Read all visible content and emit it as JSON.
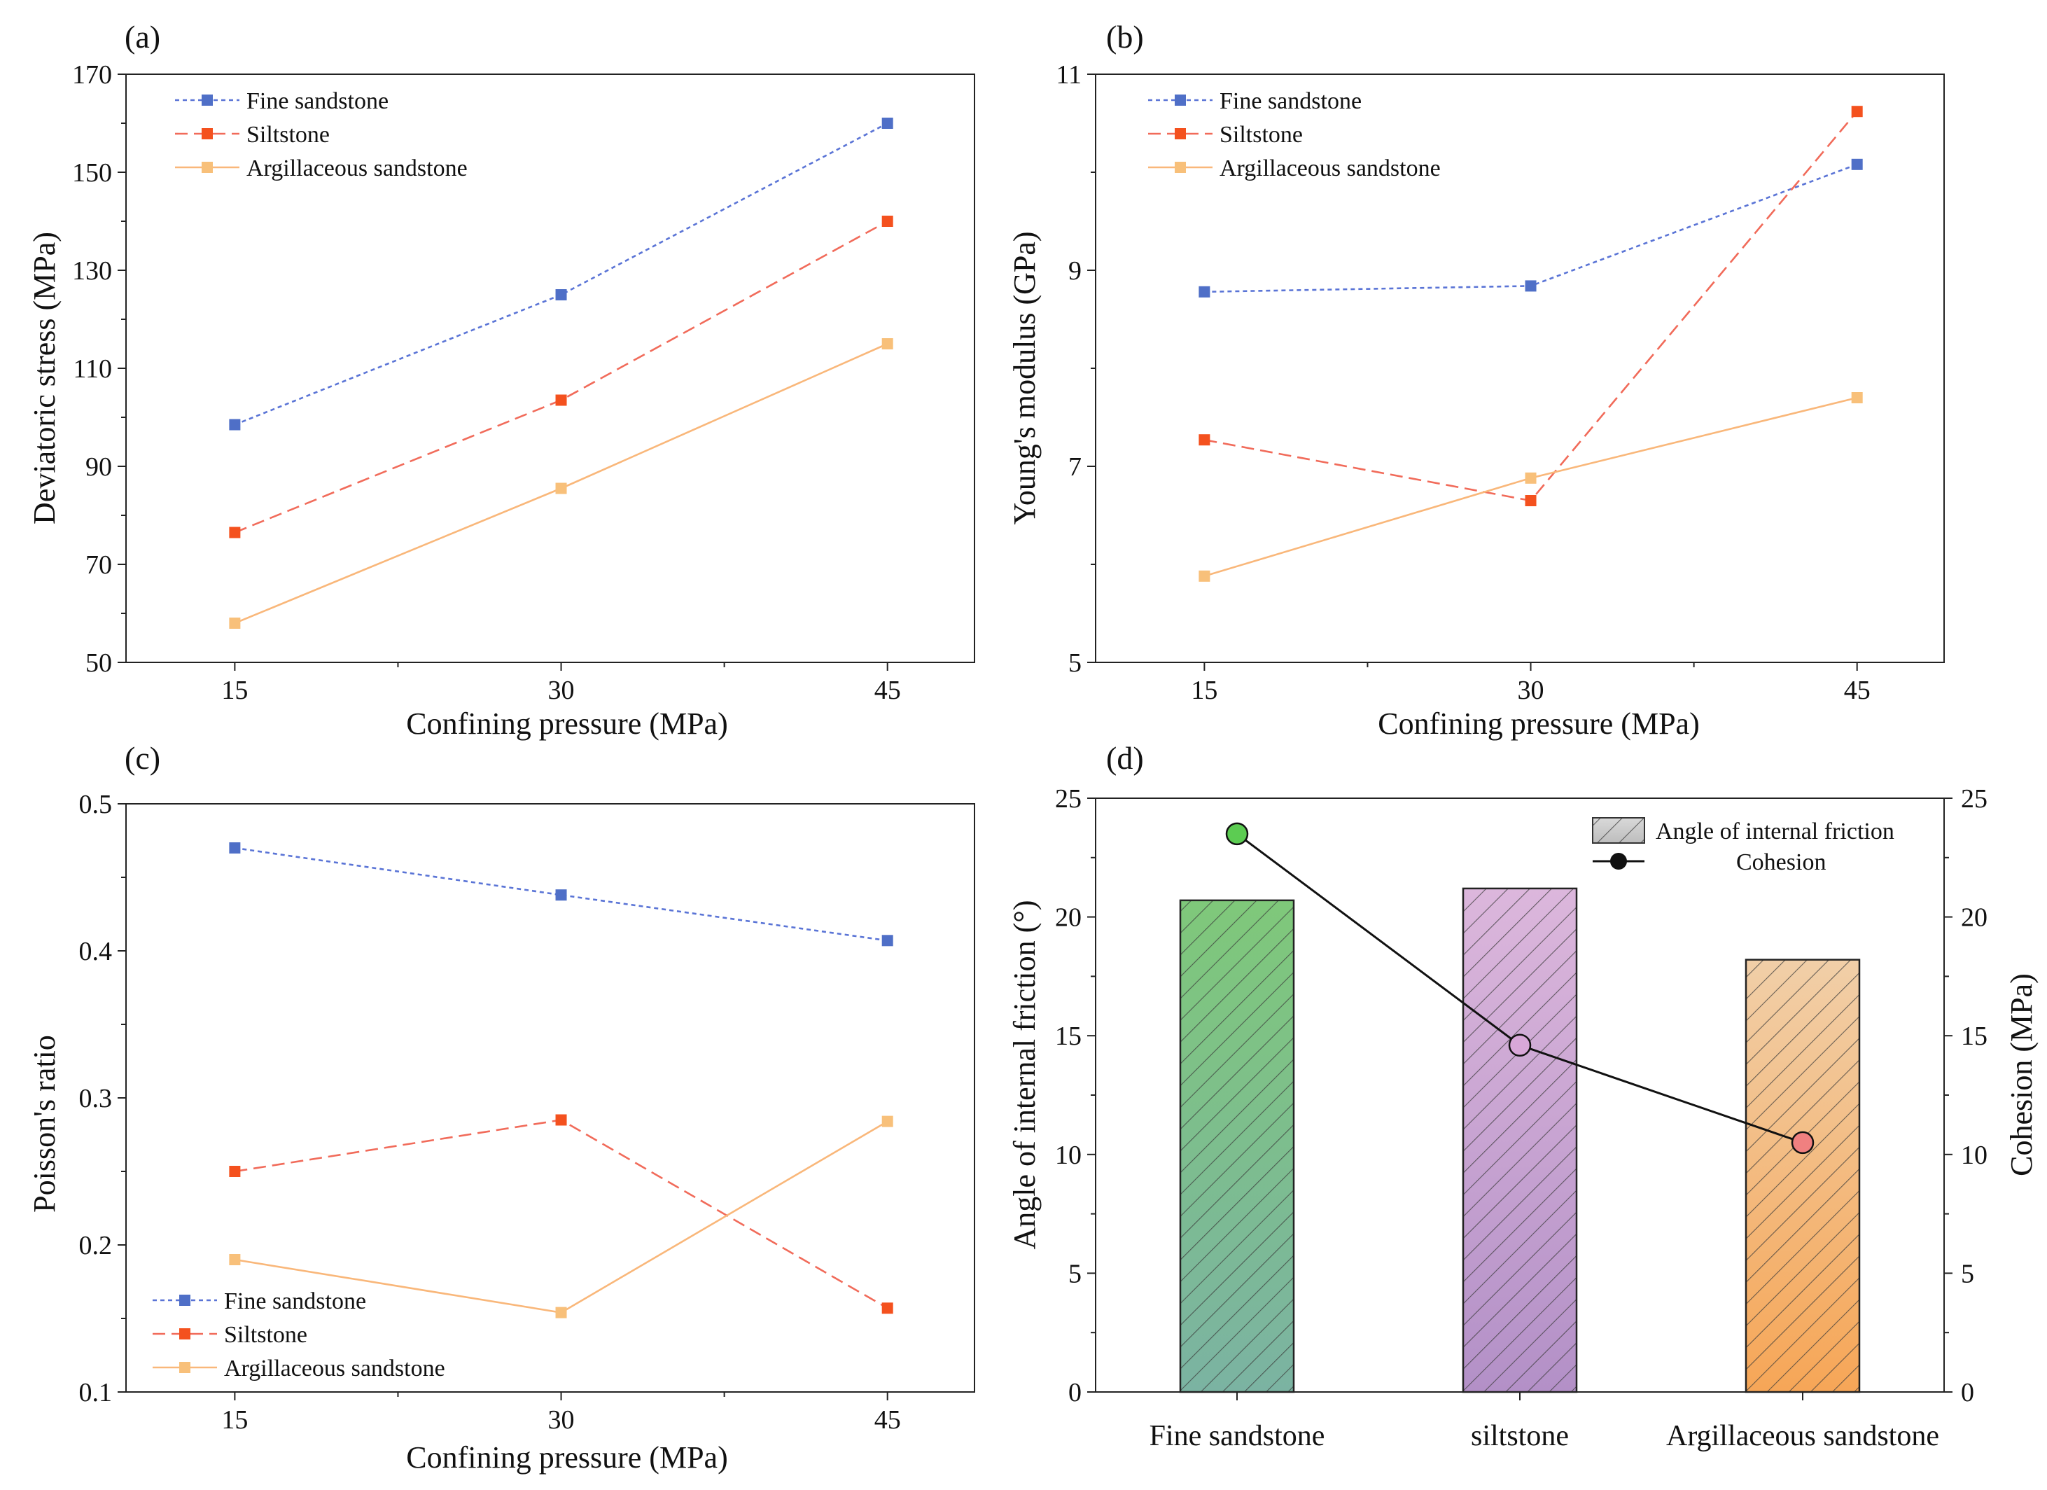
{
  "colors": {
    "fine": "#4f6fc7",
    "silt": "#f4511e",
    "argil": "#f8c07a",
    "fine_line": "#5a74d6",
    "silt_line": "#f16b5a",
    "argil_line": "#f9b77a",
    "bar_fine_top": "#7fc87a",
    "bar_fine_bottom": "#7bb3a2",
    "bar_silt_top": "#dcb7dc",
    "bar_silt_bottom": "#b390c7",
    "bar_argil_top": "#f1cfa8",
    "bar_argil_bottom": "#f6a657",
    "marker_fine": "#5ccc52",
    "marker_silt": "#d8a7d8",
    "marker_argil": "#f08080"
  },
  "chart_data": [
    {
      "id": "a",
      "panel_label": "(a)",
      "type": "line",
      "xlabel": "Confining pressure (MPa)",
      "ylabel": "Deviatoric stress (MPa)",
      "x": [
        15,
        30,
        45
      ],
      "x_ticks": [
        "15",
        "30",
        "45"
      ],
      "xlim": [
        10,
        49
      ],
      "ylim": [
        50,
        170
      ],
      "y_ticks": [
        "50",
        "70",
        "90",
        "110",
        "130",
        "150",
        "170"
      ],
      "legend_position": "top-left",
      "series": [
        {
          "name": "Fine sandstone",
          "key": "fine",
          "style": "dotted",
          "values": [
            98.5,
            125,
            160
          ]
        },
        {
          "name": "Siltstone",
          "key": "silt",
          "style": "dashed",
          "values": [
            76.5,
            103.5,
            140
          ]
        },
        {
          "name": "Argillaceous sandstone",
          "key": "argil",
          "style": "solid",
          "values": [
            58,
            85.5,
            115
          ]
        }
      ]
    },
    {
      "id": "b",
      "panel_label": "(b)",
      "type": "line",
      "xlabel": "Confining pressure (MPa)",
      "ylabel": "Young's modulus (GPa)",
      "x": [
        15,
        30,
        45
      ],
      "x_ticks": [
        "15",
        "30",
        "45"
      ],
      "xlim": [
        10,
        49
      ],
      "ylim": [
        5,
        11
      ],
      "y_ticks": [
        "5",
        "7",
        "9",
        "11"
      ],
      "legend_position": "top-left",
      "series": [
        {
          "name": "Fine sandstone",
          "key": "fine",
          "style": "dotted",
          "values": [
            8.78,
            8.84,
            10.08
          ]
        },
        {
          "name": "Siltstone",
          "key": "silt",
          "style": "dashed",
          "values": [
            7.27,
            6.65,
            10.62
          ]
        },
        {
          "name": "Argillaceous sandstone",
          "key": "argil",
          "style": "solid",
          "values": [
            5.88,
            6.88,
            7.7
          ]
        }
      ]
    },
    {
      "id": "c",
      "panel_label": "(c)",
      "type": "line",
      "xlabel": "Confining pressure (MPa)",
      "ylabel": "Poisson's ratio",
      "x": [
        15,
        30,
        45
      ],
      "x_ticks": [
        "15",
        "30",
        "45"
      ],
      "xlim": [
        10,
        49
      ],
      "ylim": [
        0.1,
        0.5
      ],
      "y_ticks": [
        "0.1",
        "0.2",
        "0.3",
        "0.4",
        "0.5"
      ],
      "legend_position": "bottom-left",
      "series": [
        {
          "name": "Fine sandstone",
          "key": "fine",
          "style": "dotted",
          "values": [
            0.47,
            0.438,
            0.407
          ]
        },
        {
          "name": "Siltstone",
          "key": "silt",
          "style": "dashed",
          "values": [
            0.25,
            0.285,
            0.157
          ]
        },
        {
          "name": "Argillaceous sandstone",
          "key": "argil",
          "style": "solid",
          "values": [
            0.19,
            0.154,
            0.284
          ]
        }
      ]
    },
    {
      "id": "d",
      "panel_label": "(d)",
      "type": "bar",
      "categories": [
        "Fine sandstone",
        "siltstone",
        "Argillaceous sandstone"
      ],
      "ylabel": "Angle of internal friction (°)",
      "y2label": "Cohesion (MPa)",
      "ylim": [
        0,
        25
      ],
      "y2lim": [
        0,
        25
      ],
      "y_ticks": [
        "0",
        "5",
        "10",
        "15",
        "20",
        "25"
      ],
      "y2_ticks": [
        "0",
        "5",
        "10",
        "15",
        "20",
        "25"
      ],
      "legend_position": "top-right",
      "series": [
        {
          "name": "Angle of internal friction",
          "axis": "left",
          "type": "bar",
          "values": [
            20.7,
            21.2,
            18.2
          ]
        },
        {
          "name": "Cohesion",
          "axis": "right",
          "type": "line",
          "values": [
            23.5,
            14.6,
            10.5
          ]
        }
      ]
    }
  ]
}
